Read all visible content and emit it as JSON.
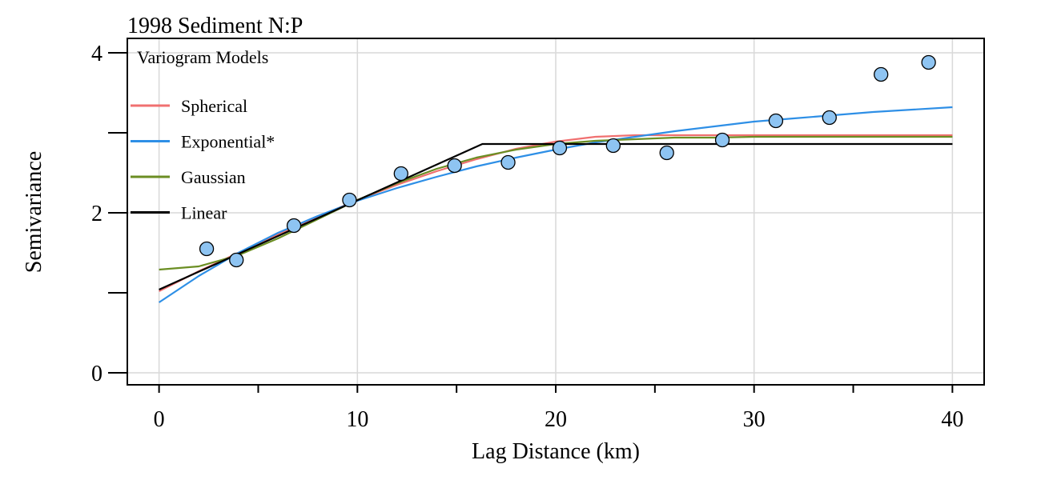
{
  "chart_data": {
    "type": "line",
    "title": "1998 Sediment N:P",
    "xlabel": "Lag Distance (km)",
    "ylabel": "Semivariance",
    "xlim": [
      -1.6,
      41.6
    ],
    "ylim": [
      -0.15,
      4.18
    ],
    "x_ticks": [
      0,
      5,
      10,
      15,
      20,
      25,
      30,
      35,
      40
    ],
    "x_tick_labels": [
      "0",
      "10",
      "20",
      "30",
      "40"
    ],
    "x_tick_label_values": [
      0,
      10,
      20,
      30,
      40
    ],
    "y_ticks": [
      0,
      1,
      2,
      3,
      4
    ],
    "y_tick_labels": [
      "0",
      "2",
      "4"
    ],
    "y_tick_label_values": [
      0,
      2,
      4
    ],
    "grid": true,
    "legend": {
      "title": "Variogram Models",
      "placement": "top-left",
      "entries": [
        "Spherical",
        "Exponential*",
        "Gaussian",
        "Linear"
      ]
    },
    "points": {
      "color": "#8ec4f2",
      "x": [
        2.4,
        3.9,
        6.8,
        9.6,
        12.2,
        14.9,
        17.6,
        20.2,
        22.9,
        25.6,
        28.4,
        31.1,
        33.8,
        36.4,
        38.8
      ],
      "y": [
        1.55,
        1.41,
        1.84,
        2.16,
        2.49,
        2.59,
        2.63,
        2.81,
        2.84,
        2.75,
        2.91,
        3.15,
        3.19,
        3.73,
        3.88
      ]
    },
    "series": [
      {
        "name": "Spherical",
        "color": "#f07070",
        "x": [
          0,
          2,
          4,
          6,
          8,
          10,
          12,
          14,
          16,
          18,
          20,
          22,
          24,
          26,
          28,
          30,
          32,
          34,
          36,
          38,
          40
        ],
        "y": [
          1.02,
          1.27,
          1.5,
          1.73,
          1.95,
          2.16,
          2.35,
          2.52,
          2.67,
          2.8,
          2.89,
          2.95,
          2.97,
          2.97,
          2.97,
          2.97,
          2.97,
          2.97,
          2.97,
          2.97,
          2.97
        ]
      },
      {
        "name": "Exponential*",
        "color": "#2e8fe6",
        "x": [
          0,
          2,
          4,
          6,
          8,
          10,
          12,
          14,
          16,
          18,
          20,
          22,
          24,
          26,
          28,
          30,
          32,
          34,
          36,
          38,
          40
        ],
        "y": [
          0.88,
          1.21,
          1.5,
          1.75,
          1.96,
          2.15,
          2.31,
          2.45,
          2.58,
          2.69,
          2.79,
          2.88,
          2.95,
          3.02,
          3.08,
          3.14,
          3.18,
          3.22,
          3.26,
          3.29,
          3.32
        ]
      },
      {
        "name": "Gaussian",
        "color": "#6b8e23",
        "x": [
          0,
          2,
          4,
          6,
          8,
          10,
          12,
          14,
          16,
          18,
          20,
          22,
          24,
          26,
          28,
          30,
          32,
          34,
          36,
          38,
          40
        ],
        "y": [
          1.29,
          1.33,
          1.47,
          1.68,
          1.92,
          2.16,
          2.37,
          2.55,
          2.69,
          2.79,
          2.86,
          2.9,
          2.92,
          2.94,
          2.94,
          2.95,
          2.95,
          2.95,
          2.95,
          2.95,
          2.95
        ]
      },
      {
        "name": "Linear",
        "color": "#000000",
        "x": [
          0,
          16.3,
          40
        ],
        "y": [
          1.04,
          2.86,
          2.86
        ]
      }
    ]
  }
}
